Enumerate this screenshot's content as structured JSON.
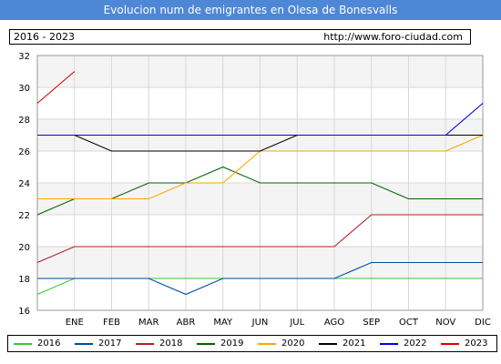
{
  "header": {
    "title": "Evolucion num de emigrantes en Olesa de Bonesvalls",
    "range_label": "2016 - 2023",
    "url": "http://www.foro-ciudad.com"
  },
  "chart_data": {
    "type": "line",
    "categories": [
      "ENE",
      "FEB",
      "MAR",
      "ABR",
      "MAY",
      "JUN",
      "JUL",
      "AGO",
      "SEP",
      "OCT",
      "NOV",
      "DIC"
    ],
    "ylim": [
      16,
      32
    ],
    "yticks": [
      16,
      18,
      20,
      22,
      24,
      26,
      28,
      30,
      32
    ],
    "grid": true,
    "legend_position": "bottom",
    "series": [
      {
        "name": "2016",
        "color": "#33cc33",
        "points": [
          [
            -1,
            17
          ],
          [
            0,
            18
          ],
          [
            1,
            18
          ],
          [
            2,
            18
          ],
          [
            3,
            18
          ],
          [
            4,
            18
          ],
          [
            5,
            18
          ],
          [
            6,
            18
          ],
          [
            7,
            18
          ],
          [
            8,
            18
          ],
          [
            9,
            18
          ],
          [
            10,
            18
          ],
          [
            11,
            18
          ]
        ]
      },
      {
        "name": "2017",
        "color": "#004a9e",
        "points": [
          [
            -1,
            18
          ],
          [
            0,
            18
          ],
          [
            1,
            18
          ],
          [
            2,
            18
          ],
          [
            3,
            17
          ],
          [
            4,
            18
          ],
          [
            5,
            18
          ],
          [
            6,
            18
          ],
          [
            7,
            18
          ],
          [
            8,
            19
          ],
          [
            9,
            19
          ],
          [
            10,
            19
          ],
          [
            11,
            19
          ]
        ]
      },
      {
        "name": "2018",
        "color": "#b22222",
        "points": [
          [
            -1,
            19
          ],
          [
            0,
            20
          ],
          [
            1,
            20
          ],
          [
            2,
            20
          ],
          [
            3,
            20
          ],
          [
            4,
            20
          ],
          [
            5,
            20
          ],
          [
            6,
            20
          ],
          [
            7,
            20
          ],
          [
            8,
            22
          ],
          [
            9,
            22
          ],
          [
            10,
            22
          ],
          [
            11,
            22
          ]
        ]
      },
      {
        "name": "2019",
        "color": "#006400",
        "points": [
          [
            -1,
            22
          ],
          [
            0,
            23
          ],
          [
            1,
            23
          ],
          [
            2,
            24
          ],
          [
            3,
            24
          ],
          [
            4,
            25
          ],
          [
            5,
            24
          ],
          [
            6,
            24
          ],
          [
            7,
            24
          ],
          [
            8,
            24
          ],
          [
            9,
            23
          ],
          [
            10,
            23
          ],
          [
            11,
            23
          ]
        ]
      },
      {
        "name": "2020",
        "color": "#ffa500",
        "points": [
          [
            -1,
            23
          ],
          [
            0,
            23
          ],
          [
            1,
            23
          ],
          [
            2,
            23
          ],
          [
            3,
            24
          ],
          [
            4,
            24
          ],
          [
            5,
            26
          ],
          [
            6,
            26
          ],
          [
            7,
            26
          ],
          [
            8,
            26
          ],
          [
            9,
            26
          ],
          [
            10,
            26
          ],
          [
            11,
            27
          ]
        ]
      },
      {
        "name": "2021",
        "color": "#000000",
        "points": [
          [
            -1,
            27
          ],
          [
            0,
            27
          ],
          [
            1,
            26
          ],
          [
            2,
            26
          ],
          [
            3,
            26
          ],
          [
            4,
            26
          ],
          [
            5,
            26
          ],
          [
            6,
            27
          ],
          [
            7,
            27
          ],
          [
            8,
            27
          ],
          [
            9,
            27
          ],
          [
            10,
            27
          ],
          [
            11,
            27
          ]
        ]
      },
      {
        "name": "2022",
        "color": "#0000ee",
        "points": [
          [
            -1,
            27
          ],
          [
            0,
            27
          ],
          [
            1,
            27
          ],
          [
            2,
            27
          ],
          [
            3,
            27
          ],
          [
            4,
            27
          ],
          [
            5,
            27
          ],
          [
            6,
            27
          ],
          [
            7,
            27
          ],
          [
            8,
            27
          ],
          [
            9,
            27
          ],
          [
            10,
            27
          ],
          [
            11,
            29
          ]
        ]
      },
      {
        "name": "2023",
        "color": "#dd0000",
        "points": [
          [
            -1,
            29
          ],
          [
            0,
            31
          ]
        ]
      }
    ]
  }
}
